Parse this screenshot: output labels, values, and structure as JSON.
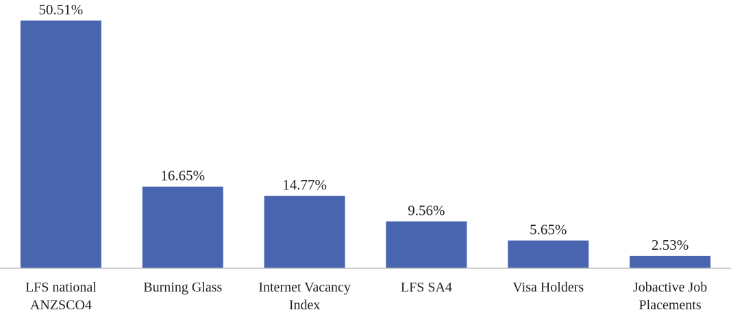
{
  "chart_data": {
    "type": "bar",
    "categories": [
      [
        "LFS national",
        "ANZSCO4"
      ],
      [
        "Burning Glass"
      ],
      [
        "Internet Vacancy",
        "Index"
      ],
      [
        "LFS SA4"
      ],
      [
        "Visa Holders"
      ],
      [
        "Jobactive Job",
        "Placements"
      ]
    ],
    "values": [
      50.51,
      16.65,
      14.77,
      9.56,
      5.65,
      2.53
    ],
    "data_labels": [
      "50.51%",
      "16.65%",
      "14.77%",
      "9.56%",
      "5.65%",
      "2.53%"
    ],
    "title": "",
    "xlabel": "",
    "ylabel": "",
    "ylim": [
      0,
      50.51
    ],
    "grid": false,
    "legend": "none",
    "colors": {
      "bar": "#4a65b0",
      "axis": "#bfbfbf",
      "text": "#222222"
    }
  }
}
